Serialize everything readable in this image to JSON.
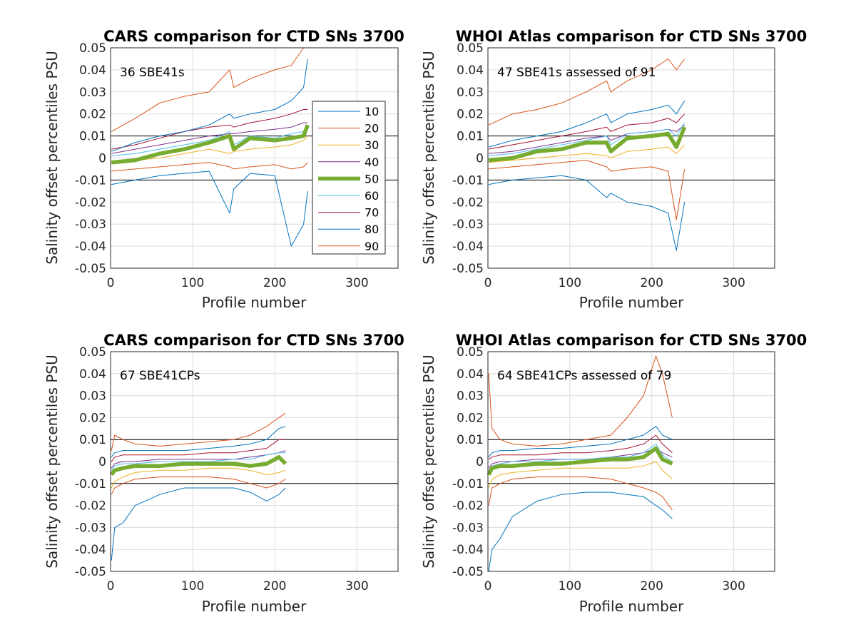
{
  "figure": {
    "background": "#ffffff"
  },
  "legend": {
    "entries": [
      "10",
      "20",
      "30",
      "40",
      "50",
      "60",
      "70",
      "80",
      "90"
    ],
    "colors": [
      "#0072BD",
      "#D95319",
      "#EDB120",
      "#7E2F8E",
      "#77AC30",
      "#4DBEEE",
      "#A2142F",
      "#0072BD",
      "#D95319"
    ],
    "placement": "inside top-right of first panel"
  },
  "chart_data": [
    {
      "type": "line",
      "title": "CARS comparison for CTD SNs 3700",
      "annotation": "36 SBE41s",
      "xlabel": "Profile number",
      "ylabel": "Salinity offset percentiles PSU",
      "xlim": [
        0,
        350
      ],
      "ylim": [
        -0.05,
        0.05
      ],
      "xticks": [
        "0",
        "100",
        "200",
        "300"
      ],
      "yticks": [
        "-0.05",
        "-0.04",
        "-0.03",
        "-0.02",
        "-0.01",
        "0",
        "0.01",
        "0.02",
        "0.03",
        "0.04",
        "0.05"
      ],
      "grid": true,
      "reference_lines": [
        0.01,
        -0.01
      ],
      "x": [
        1,
        30,
        60,
        90,
        120,
        145,
        150,
        170,
        200,
        220,
        235,
        240
      ],
      "series": [
        {
          "name": "10",
          "values": [
            -0.012,
            -0.01,
            -0.008,
            -0.007,
            -0.006,
            -0.025,
            -0.014,
            -0.007,
            -0.008,
            -0.04,
            -0.03,
            -0.015
          ]
        },
        {
          "name": "20",
          "values": [
            0.012,
            0.018,
            0.025,
            0.028,
            0.03,
            0.04,
            0.032,
            0.036,
            0.04,
            0.042,
            0.05,
            0.05
          ]
        },
        {
          "name": "30",
          "values": [
            -0.002,
            -0.001,
            0.0,
            0.002,
            0.004,
            0.002,
            0.003,
            0.004,
            0.005,
            0.006,
            0.008,
            0.01
          ]
        },
        {
          "name": "40",
          "values": [
            0.002,
            0.004,
            0.006,
            0.008,
            0.01,
            0.011,
            0.011,
            0.012,
            0.013,
            0.014,
            0.016,
            0.016
          ]
        },
        {
          "name": "50",
          "values": [
            -0.002,
            -0.001,
            0.002,
            0.004,
            0.007,
            0.01,
            0.004,
            0.009,
            0.008,
            0.009,
            0.01,
            0.015
          ]
        },
        {
          "name": "60",
          "values": [
            0.001,
            0.002,
            0.004,
            0.006,
            0.008,
            0.012,
            0.006,
            0.01,
            0.009,
            0.011,
            0.012,
            0.014
          ]
        },
        {
          "name": "70",
          "values": [
            0.004,
            0.006,
            0.009,
            0.012,
            0.014,
            0.015,
            0.014,
            0.016,
            0.018,
            0.02,
            0.022,
            0.022
          ]
        },
        {
          "name": "80",
          "values": [
            0.003,
            0.007,
            0.01,
            0.012,
            0.015,
            0.02,
            0.018,
            0.02,
            0.022,
            0.026,
            0.032,
            0.045
          ]
        },
        {
          "name": "90",
          "values": [
            -0.006,
            -0.005,
            -0.004,
            -0.003,
            -0.002,
            -0.004,
            -0.005,
            -0.004,
            -0.003,
            -0.005,
            -0.004,
            -0.002
          ]
        }
      ]
    },
    {
      "type": "line",
      "title": "WHOI Atlas comparison for CTD SNs 3700",
      "annotation": "47 SBE41s assessed of 91",
      "xlabel": "Profile number",
      "ylabel": "Salinity offset percentiles PSU",
      "xlim": [
        0,
        350
      ],
      "ylim": [
        -0.05,
        0.05
      ],
      "xticks": [
        "0",
        "100",
        "200",
        "300"
      ],
      "yticks": [
        "-0.05",
        "-0.04",
        "-0.03",
        "-0.02",
        "-0.01",
        "0",
        "0.01",
        "0.02",
        "0.03",
        "0.04",
        "0.05"
      ],
      "grid": true,
      "reference_lines": [
        0.01,
        -0.01
      ],
      "x": [
        1,
        30,
        60,
        90,
        120,
        145,
        150,
        170,
        200,
        220,
        230,
        240
      ],
      "series": [
        {
          "name": "10",
          "values": [
            -0.012,
            -0.01,
            -0.009,
            -0.008,
            -0.01,
            -0.018,
            -0.016,
            -0.02,
            -0.022,
            -0.025,
            -0.042,
            -0.02
          ]
        },
        {
          "name": "20",
          "values": [
            0.015,
            0.02,
            0.022,
            0.025,
            0.03,
            0.035,
            0.03,
            0.035,
            0.04,
            0.045,
            0.04,
            0.045
          ]
        },
        {
          "name": "30",
          "values": [
            -0.002,
            -0.001,
            0.0,
            0.001,
            0.002,
            0.001,
            0.0,
            0.003,
            0.004,
            0.005,
            0.002,
            0.006
          ]
        },
        {
          "name": "40",
          "values": [
            0.002,
            0.003,
            0.005,
            0.007,
            0.009,
            0.01,
            0.008,
            0.011,
            0.012,
            0.013,
            0.012,
            0.015
          ]
        },
        {
          "name": "50",
          "values": [
            -0.001,
            0.0,
            0.003,
            0.004,
            0.007,
            0.007,
            0.003,
            0.009,
            0.01,
            0.011,
            0.005,
            0.014
          ]
        },
        {
          "name": "60",
          "values": [
            0.001,
            0.002,
            0.004,
            0.006,
            0.008,
            0.01,
            0.006,
            0.011,
            0.012,
            0.013,
            0.01,
            0.016
          ]
        },
        {
          "name": "70",
          "values": [
            0.004,
            0.006,
            0.008,
            0.01,
            0.012,
            0.014,
            0.012,
            0.015,
            0.016,
            0.018,
            0.016,
            0.02
          ]
        },
        {
          "name": "80",
          "values": [
            0.005,
            0.008,
            0.01,
            0.012,
            0.016,
            0.02,
            0.016,
            0.02,
            0.022,
            0.024,
            0.02,
            0.026
          ]
        },
        {
          "name": "90",
          "values": [
            -0.005,
            -0.004,
            -0.003,
            -0.002,
            -0.001,
            -0.004,
            -0.006,
            -0.005,
            -0.004,
            -0.006,
            -0.028,
            -0.005
          ]
        }
      ]
    },
    {
      "type": "line",
      "title": "CARS comparison for CTD SNs 3700",
      "annotation": "67 SBE41CPs",
      "xlabel": "Profile number",
      "ylabel": "Salinity offset percentiles PSU",
      "xlim": [
        0,
        350
      ],
      "ylim": [
        -0.05,
        0.05
      ],
      "xticks": [
        "0",
        "100",
        "200",
        "300"
      ],
      "yticks": [
        "-0.05",
        "-0.04",
        "-0.03",
        "-0.02",
        "-0.01",
        "0",
        "0.01",
        "0.02",
        "0.03",
        "0.04",
        "0.05"
      ],
      "grid": true,
      "reference_lines": [
        0.01,
        -0.01
      ],
      "x": [
        1,
        5,
        15,
        30,
        60,
        90,
        120,
        150,
        170,
        190,
        205,
        213
      ],
      "series": [
        {
          "name": "10",
          "values": [
            -0.045,
            -0.03,
            -0.028,
            -0.02,
            -0.015,
            -0.012,
            -0.012,
            -0.012,
            -0.014,
            -0.018,
            -0.015,
            -0.012
          ]
        },
        {
          "name": "20",
          "values": [
            0.005,
            0.012,
            0.01,
            0.008,
            0.007,
            0.008,
            0.009,
            0.01,
            0.012,
            0.016,
            0.02,
            0.022
          ]
        },
        {
          "name": "30",
          "values": [
            -0.012,
            -0.009,
            -0.007,
            -0.005,
            -0.004,
            -0.004,
            -0.003,
            -0.003,
            -0.004,
            -0.006,
            -0.005,
            -0.004
          ]
        },
        {
          "name": "40",
          "values": [
            -0.003,
            -0.001,
            0.0,
            0.0,
            0.001,
            0.001,
            0.001,
            0.001,
            0.002,
            0.003,
            0.004,
            0.005
          ]
        },
        {
          "name": "50",
          "values": [
            -0.006,
            -0.004,
            -0.003,
            -0.002,
            -0.002,
            -0.001,
            -0.001,
            -0.001,
            -0.002,
            -0.001,
            0.002,
            -0.001
          ]
        },
        {
          "name": "60",
          "values": [
            -0.004,
            -0.002,
            -0.001,
            -0.001,
            0.0,
            0.0,
            0.0,
            0.001,
            0.001,
            0.003,
            0.004,
            0.004
          ]
        },
        {
          "name": "70",
          "values": [
            0.0,
            0.002,
            0.003,
            0.003,
            0.003,
            0.003,
            0.004,
            0.004,
            0.005,
            0.006,
            0.01,
            0.01
          ]
        },
        {
          "name": "80",
          "values": [
            0.002,
            0.004,
            0.005,
            0.005,
            0.005,
            0.005,
            0.006,
            0.007,
            0.008,
            0.01,
            0.015,
            0.016
          ]
        },
        {
          "name": "90",
          "values": [
            -0.015,
            -0.012,
            -0.01,
            -0.008,
            -0.007,
            -0.007,
            -0.007,
            -0.008,
            -0.01,
            -0.012,
            -0.01,
            -0.008
          ]
        }
      ]
    },
    {
      "type": "line",
      "title": "WHOI Atlas comparison for CTD SNs 3700",
      "annotation": "64 SBE41CPs assessed of 79",
      "xlabel": "Profile number",
      "ylabel": "Salinity offset percentiles PSU",
      "xlim": [
        0,
        350
      ],
      "ylim": [
        -0.05,
        0.05
      ],
      "xticks": [
        "0",
        "100",
        "200",
        "300"
      ],
      "yticks": [
        "-0.05",
        "-0.04",
        "-0.03",
        "-0.02",
        "-0.01",
        "0",
        "0.01",
        "0.02",
        "0.03",
        "0.04",
        "0.05"
      ],
      "grid": true,
      "reference_lines": [
        0.01,
        -0.01
      ],
      "x": [
        1,
        5,
        15,
        30,
        60,
        90,
        120,
        150,
        170,
        190,
        205,
        213,
        225
      ],
      "series": [
        {
          "name": "10",
          "values": [
            -0.05,
            -0.04,
            -0.035,
            -0.025,
            -0.018,
            -0.015,
            -0.014,
            -0.014,
            -0.015,
            -0.016,
            -0.02,
            -0.022,
            -0.026
          ]
        },
        {
          "name": "20",
          "values": [
            0.04,
            0.015,
            0.01,
            0.008,
            0.007,
            0.008,
            0.01,
            0.012,
            0.02,
            0.03,
            0.048,
            0.04,
            0.02
          ]
        },
        {
          "name": "30",
          "values": [
            -0.012,
            -0.008,
            -0.006,
            -0.005,
            -0.004,
            -0.003,
            -0.003,
            -0.003,
            -0.003,
            -0.002,
            0.0,
            -0.004,
            -0.008
          ]
        },
        {
          "name": "40",
          "values": [
            -0.003,
            -0.001,
            0.0,
            0.0,
            0.001,
            0.001,
            0.001,
            0.002,
            0.003,
            0.004,
            0.006,
            0.004,
            0.002
          ]
        },
        {
          "name": "50",
          "values": [
            -0.006,
            -0.003,
            -0.002,
            -0.002,
            -0.001,
            -0.001,
            0.0,
            0.001,
            0.001,
            0.002,
            0.006,
            0.001,
            -0.001
          ]
        },
        {
          "name": "60",
          "values": [
            -0.004,
            -0.002,
            -0.001,
            0.0,
            0.0,
            0.001,
            0.001,
            0.002,
            0.002,
            0.004,
            0.008,
            0.003,
            0.0
          ]
        },
        {
          "name": "70",
          "values": [
            0.001,
            0.002,
            0.003,
            0.003,
            0.003,
            0.004,
            0.004,
            0.005,
            0.006,
            0.008,
            0.012,
            0.008,
            0.004
          ]
        },
        {
          "name": "80",
          "values": [
            0.002,
            0.004,
            0.005,
            0.005,
            0.006,
            0.006,
            0.007,
            0.008,
            0.01,
            0.012,
            0.016,
            0.012,
            0.01
          ]
        },
        {
          "name": "90",
          "values": [
            -0.02,
            -0.012,
            -0.01,
            -0.008,
            -0.007,
            -0.007,
            -0.007,
            -0.008,
            -0.01,
            -0.012,
            -0.014,
            -0.016,
            -0.022
          ]
        }
      ]
    }
  ]
}
